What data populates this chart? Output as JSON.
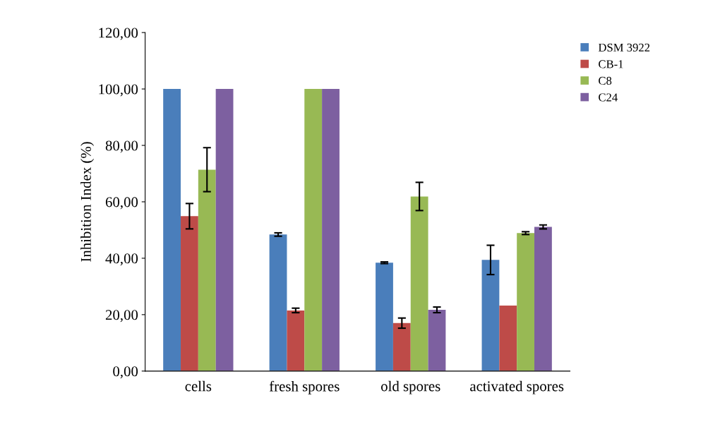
{
  "chart_data": {
    "type": "bar",
    "ylabel": "Inhibition Index (%)",
    "categories": [
      "cells",
      "fresh spores",
      "old spores",
      "activated spores"
    ],
    "series": [
      {
        "name": "DSM 3922",
        "color": "#4a7ebb",
        "values": [
          100,
          48.4,
          38.4,
          39.4
        ],
        "errors": [
          null,
          0.6,
          0.3,
          5.2
        ]
      },
      {
        "name": "CB-1",
        "color": "#be4b48",
        "values": [
          54.9,
          21.5,
          17.0,
          23.2
        ],
        "errors": [
          4.5,
          0.8,
          1.8,
          null
        ]
      },
      {
        "name": "C8",
        "color": "#98b954",
        "values": [
          71.4,
          100,
          61.9,
          48.9
        ],
        "errors": [
          7.8,
          null,
          5.0,
          0.5
        ]
      },
      {
        "name": "C24",
        "color": "#7d60a0",
        "values": [
          100,
          100,
          21.7,
          51.1
        ],
        "errors": [
          null,
          null,
          1.0,
          0.7
        ]
      }
    ],
    "ylim": [
      0,
      120
    ],
    "yticks": [
      {
        "value": 0,
        "label": "0,00"
      },
      {
        "value": 20,
        "label": "20,00"
      },
      {
        "value": 40,
        "label": "40,00"
      },
      {
        "value": 60,
        "label": "60,00"
      },
      {
        "value": 80,
        "label": "80,00"
      },
      {
        "value": 100,
        "label": "100,00"
      },
      {
        "value": 120,
        "label": "120,00"
      }
    ],
    "grid": false,
    "legend": "top right"
  }
}
